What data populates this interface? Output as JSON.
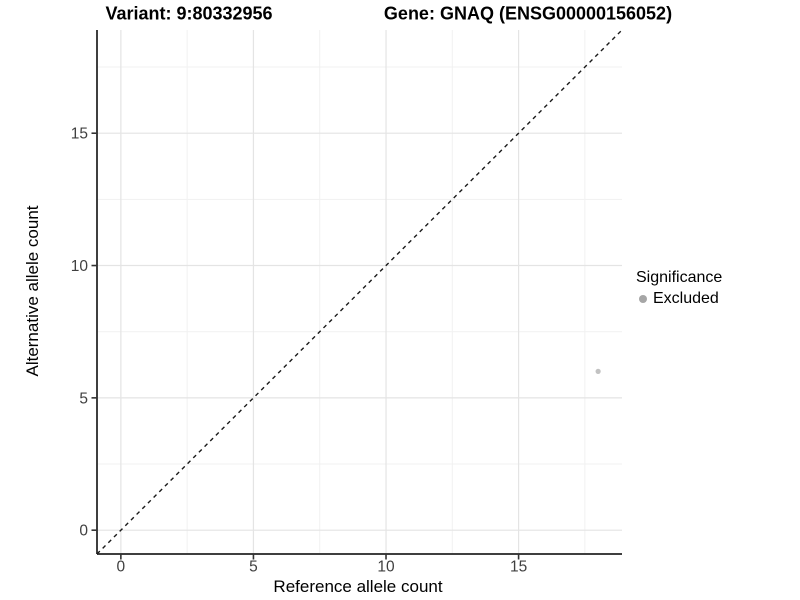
{
  "figure": {
    "background": "#ffffff"
  },
  "chart_data": {
    "type": "scatter",
    "titles": {
      "left": "Variant: 9:80332956",
      "right": "Gene: GNAQ (ENSG00000156052)"
    },
    "xlabel": "Reference allele count",
    "ylabel": "Alternative allele count",
    "xlim": [
      -0.9,
      18.9
    ],
    "ylim": [
      -0.9,
      18.9
    ],
    "major_ticks": [
      0,
      5,
      10,
      15
    ],
    "minor_gridlines": [
      2.5,
      7.5,
      12.5,
      17.5
    ],
    "grid": "major+minor",
    "identity_line": {
      "type": "y=x",
      "style": "dashed",
      "color": "#1a1a1a"
    },
    "series": [
      {
        "name": "Excluded",
        "color": "#c2c2c2",
        "point_radius": 2.6,
        "points": [
          {
            "x": 18,
            "y": 6
          }
        ]
      }
    ],
    "legend": {
      "title": "Significance",
      "position": "right",
      "entries": [
        {
          "label": "Excluded",
          "color": "#a6a6a6"
        }
      ]
    },
    "style": {
      "axis_color": "#3f3f3f",
      "tick_color": "#333333",
      "tick_label_color": "#404040",
      "major_grid_color": "#e4e4e4",
      "minor_grid_color": "#f1f1f1"
    }
  }
}
